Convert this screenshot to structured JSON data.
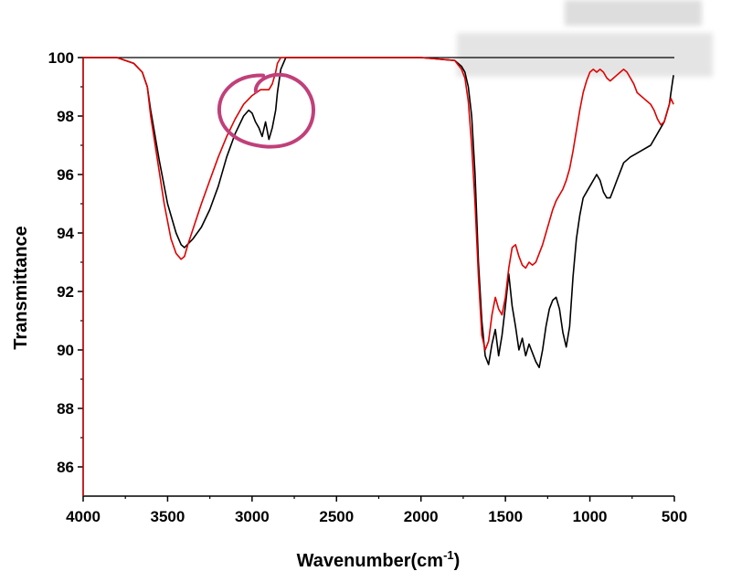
{
  "chart_data": {
    "type": "line",
    "xlabel": "Wavenumber(cm",
    "xlabel_sup": "-1",
    "xlabel_close": ")",
    "ylabel": "Transmittance",
    "xlim": [
      4000,
      500
    ],
    "ylim": [
      85,
      100
    ],
    "x_reversed": true,
    "x_ticks": [
      4000,
      3500,
      3000,
      2500,
      2000,
      1500,
      1000,
      500
    ],
    "x_tick_labels": [
      "4000",
      "3500",
      "3000",
      "2500",
      "2000",
      "1500",
      "1000",
      "500"
    ],
    "y_ticks": [
      86,
      88,
      90,
      92,
      94,
      96,
      98,
      100
    ],
    "y_tick_labels": [
      "86",
      "88",
      "90",
      "92",
      "94",
      "96",
      "98",
      "100"
    ],
    "grid": false,
    "legend": "none",
    "series": [
      {
        "color": "#000000",
        "x": [
          4000,
          3800,
          3700,
          3650,
          3620,
          3600,
          3550,
          3500,
          3450,
          3420,
          3400,
          3350,
          3300,
          3250,
          3200,
          3150,
          3100,
          3050,
          3020,
          3000,
          2980,
          2960,
          2940,
          2920,
          2900,
          2880,
          2860,
          2850,
          2830,
          2800,
          2600,
          2400,
          2200,
          2000,
          1800,
          1760,
          1740,
          1720,
          1700,
          1680,
          1660,
          1640,
          1620,
          1600,
          1580,
          1560,
          1540,
          1520,
          1500,
          1480,
          1460,
          1440,
          1420,
          1400,
          1380,
          1360,
          1340,
          1320,
          1300,
          1280,
          1260,
          1240,
          1220,
          1200,
          1180,
          1160,
          1140,
          1120,
          1100,
          1080,
          1060,
          1040,
          1020,
          1000,
          960,
          940,
          920,
          900,
          880,
          860,
          840,
          820,
          800,
          760,
          700,
          640,
          600,
          560,
          530,
          515,
          505
        ],
        "y": [
          100,
          100,
          99.8,
          99.5,
          99,
          98.2,
          96.5,
          95,
          94,
          93.6,
          93.5,
          93.8,
          94.2,
          94.8,
          95.6,
          96.6,
          97.4,
          98,
          98.2,
          98.1,
          97.8,
          97.6,
          97.3,
          97.8,
          97.2,
          97.6,
          98.2,
          98.8,
          99.6,
          100,
          100,
          100,
          100,
          100,
          99.9,
          99.7,
          99.5,
          99,
          98,
          96,
          93,
          91,
          89.8,
          89.5,
          90.2,
          90.7,
          89.8,
          90.5,
          91.5,
          92.6,
          91.5,
          90.8,
          90,
          90.4,
          89.8,
          90.2,
          89.9,
          89.6,
          89.4,
          90,
          90.8,
          91.4,
          91.7,
          91.8,
          91.4,
          90.6,
          90.1,
          90.8,
          92.5,
          93.8,
          94.6,
          95.2,
          95.4,
          95.6,
          96,
          95.8,
          95.4,
          95.2,
          95.2,
          95.5,
          95.8,
          96.1,
          96.4,
          96.6,
          96.8,
          97,
          97.4,
          97.8,
          98.4,
          99,
          99.4
        ]
      },
      {
        "color": "#e00000",
        "x": [
          4000,
          3800,
          3700,
          3650,
          3620,
          3600,
          3560,
          3520,
          3480,
          3450,
          3420,
          3400,
          3380,
          3340,
          3300,
          3250,
          3200,
          3150,
          3100,
          3050,
          3000,
          2950,
          2900,
          2880,
          2860,
          2850,
          2830,
          2800,
          2600,
          2400,
          2200,
          2000,
          1800,
          1760,
          1740,
          1720,
          1700,
          1680,
          1660,
          1640,
          1620,
          1600,
          1580,
          1560,
          1540,
          1520,
          1500,
          1480,
          1460,
          1440,
          1420,
          1400,
          1380,
          1360,
          1340,
          1320,
          1300,
          1280,
          1260,
          1240,
          1220,
          1200,
          1180,
          1160,
          1140,
          1120,
          1100,
          1080,
          1060,
          1040,
          1020,
          1000,
          980,
          960,
          940,
          920,
          900,
          880,
          860,
          840,
          820,
          800,
          780,
          760,
          740,
          720,
          700,
          680,
          660,
          640,
          620,
          600,
          580,
          560,
          540,
          520,
          505
        ],
        "y": [
          100,
          100,
          99.8,
          99.5,
          99,
          98,
          96.5,
          95,
          93.8,
          93.3,
          93.1,
          93.2,
          93.6,
          94.3,
          95,
          95.8,
          96.6,
          97.3,
          97.9,
          98.4,
          98.7,
          98.9,
          98.9,
          99.1,
          99.5,
          99.8,
          100,
          100,
          100,
          100,
          100,
          100,
          99.9,
          99.6,
          99.3,
          98.5,
          97,
          95,
          92.5,
          90.5,
          90,
          90.3,
          91.2,
          91.8,
          91.4,
          91.2,
          91.8,
          92.8,
          93.5,
          93.6,
          93.2,
          92.9,
          92.8,
          93,
          92.9,
          93,
          93.3,
          93.6,
          94,
          94.4,
          94.8,
          95.1,
          95.3,
          95.5,
          95.8,
          96.2,
          96.8,
          97.5,
          98.2,
          98.8,
          99.2,
          99.5,
          99.6,
          99.5,
          99.6,
          99.5,
          99.3,
          99.2,
          99.3,
          99.4,
          99.5,
          99.6,
          99.5,
          99.3,
          99.1,
          98.8,
          98.7,
          98.6,
          98.5,
          98.4,
          98.2,
          97.9,
          97.7,
          97.8,
          98.2,
          98.6,
          98.4
        ]
      }
    ],
    "annotation": {
      "shape": "ellipse",
      "color": "#c0407a",
      "center_x": 2880,
      "center_y": 98.2
    }
  }
}
